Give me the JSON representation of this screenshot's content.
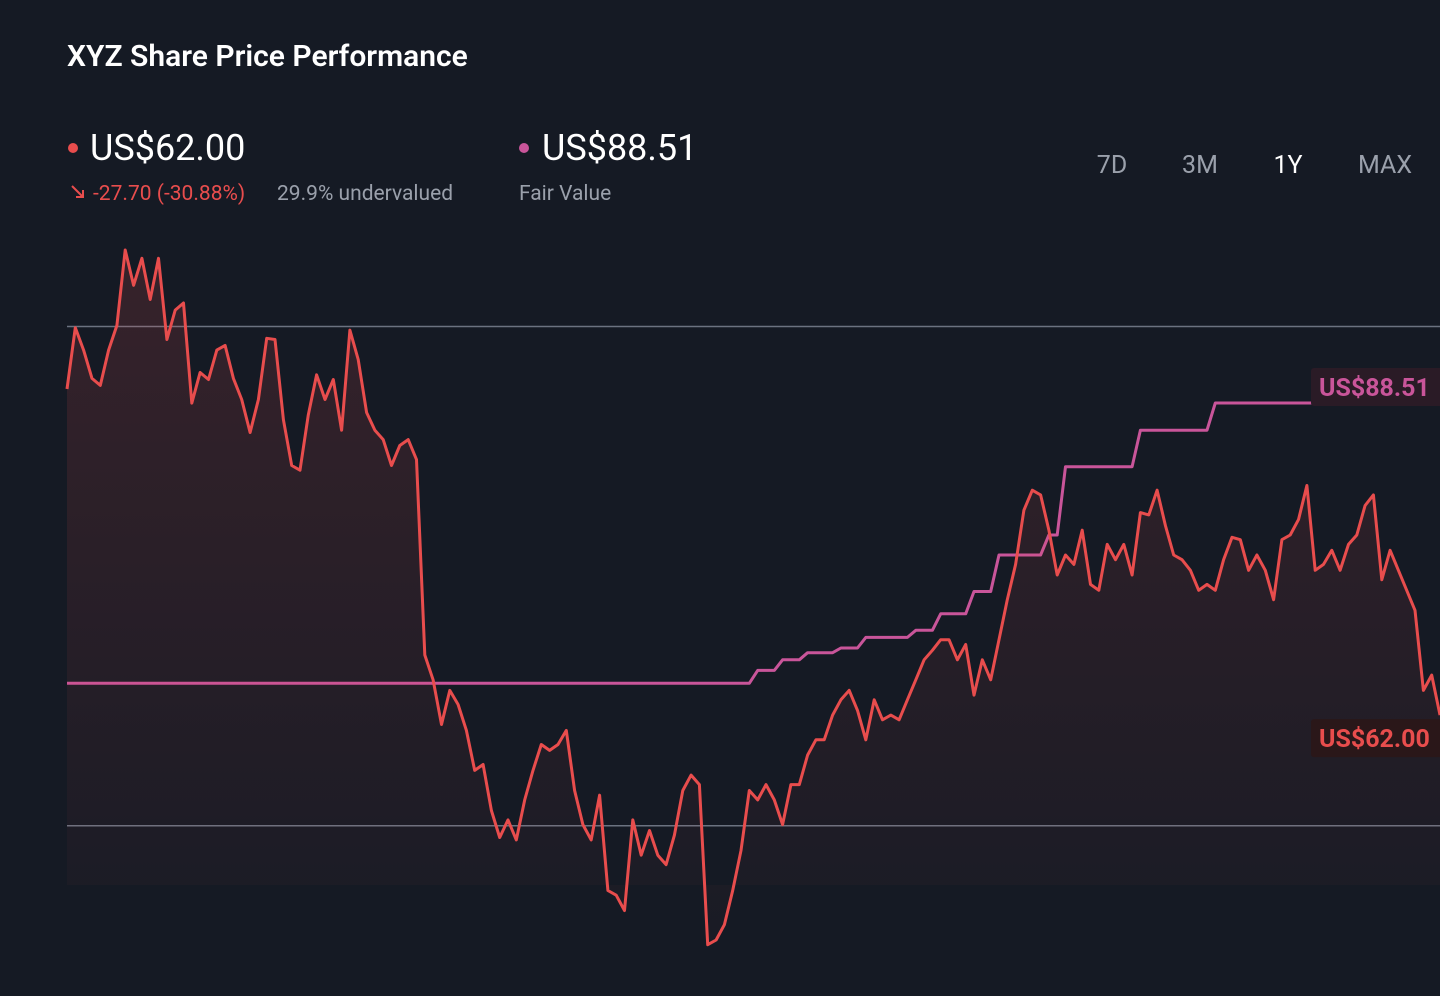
{
  "header": {
    "price": "US$62.00",
    "change": "-27.70 (-30.88%)",
    "valuation": "29.9% undervalued",
    "fair_value": "US$88.51",
    "fair_value_caption": "Fair Value",
    "ranges": [
      "7D",
      "3M",
      "1Y",
      "MAX"
    ],
    "active_range_index": 2
  },
  "chart_data": {
    "type": "line",
    "title": "XYZ Share Price Performance",
    "ylim": [
      41.2,
      103.2
    ],
    "yticks": [
      52.6,
      95
    ],
    "grid": true,
    "series": [
      {
        "name": "Share Price",
        "color": "#e84d4d",
        "last_label": "US$62.00",
        "values": [
          89.7,
          94.9,
          93.0,
          90.6,
          90.0,
          93.0,
          95.1,
          101.5,
          98.5,
          100.8,
          97.3,
          100.8,
          93.9,
          96.4,
          97.0,
          88.5,
          91.1,
          90.5,
          93.0,
          93.4,
          90.6,
          88.8,
          86.0,
          88.8,
          94.0,
          93.9,
          87.1,
          83.2,
          82.8,
          87.5,
          90.9,
          88.8,
          90.5,
          86.2,
          94.7,
          92.2,
          87.7,
          86.2,
          85.4,
          83.2,
          84.9,
          85.4,
          83.7,
          67.1,
          65.0,
          61.2,
          64.1,
          62.9,
          60.7,
          57.3,
          57.8,
          53.9,
          51.6,
          53.1,
          51.4,
          54.8,
          57.3,
          59.5,
          59.0,
          59.5,
          60.7,
          55.6,
          52.7,
          51.4,
          55.2,
          47.1,
          46.7,
          45.4,
          53.1,
          50.1,
          52.2,
          50.1,
          49.3,
          51.8,
          55.6,
          56.9,
          56.1,
          42.5,
          42.9,
          44.2,
          47.1,
          50.5,
          55.6,
          54.8,
          56.1,
          54.8,
          52.7,
          56.1,
          56.1,
          58.6,
          59.9,
          59.9,
          62.0,
          63.3,
          64.1,
          62.4,
          59.9,
          63.3,
          61.6,
          62.0,
          61.6,
          63.3,
          65.0,
          66.7,
          67.5,
          68.4,
          68.4,
          66.7,
          68.0,
          63.7,
          66.7,
          65.0,
          68.4,
          71.8,
          74.8,
          79.4,
          81.1,
          80.7,
          77.7,
          73.9,
          75.6,
          74.8,
          77.7,
          73.1,
          72.6,
          76.5,
          75.2,
          76.5,
          73.9,
          79.2,
          79.0,
          81.1,
          78.1,
          75.6,
          75.2,
          74.3,
          72.6,
          73.1,
          72.6,
          75.2,
          77.1,
          76.9,
          74.3,
          75.6,
          74.3,
          71.8,
          76.9,
          77.3,
          78.6,
          81.5,
          74.3,
          74.8,
          76.0,
          74.3,
          76.5,
          77.3,
          79.8,
          80.7,
          73.5,
          76.0,
          74.3,
          72.6,
          70.9,
          64.1,
          65.4,
          62.0
        ]
      },
      {
        "name": "Fair Value",
        "color": "#c9559a",
        "last_label": "US$88.51",
        "values": [
          64.7,
          64.7,
          64.7,
          64.7,
          64.7,
          64.7,
          64.7,
          64.7,
          64.7,
          64.7,
          64.7,
          64.7,
          64.7,
          64.7,
          64.7,
          64.7,
          64.7,
          64.7,
          64.7,
          64.7,
          64.7,
          64.7,
          64.7,
          64.7,
          64.7,
          64.7,
          64.7,
          64.7,
          64.7,
          64.7,
          64.7,
          64.7,
          64.7,
          64.7,
          64.7,
          64.7,
          64.7,
          64.7,
          64.7,
          64.7,
          64.7,
          64.7,
          64.7,
          64.7,
          64.7,
          64.7,
          64.7,
          64.7,
          64.7,
          64.7,
          64.7,
          64.7,
          64.7,
          64.7,
          64.7,
          64.7,
          64.7,
          64.7,
          64.7,
          64.7,
          64.7,
          64.7,
          64.7,
          64.7,
          64.7,
          64.7,
          64.7,
          64.7,
          64.7,
          64.7,
          64.7,
          64.7,
          64.7,
          64.7,
          64.7,
          64.7,
          64.7,
          64.7,
          64.7,
          64.7,
          64.7,
          64.7,
          64.7,
          65.8,
          65.8,
          65.8,
          66.7,
          66.7,
          66.7,
          67.3,
          67.3,
          67.3,
          67.3,
          67.7,
          67.7,
          67.7,
          68.6,
          68.6,
          68.6,
          68.6,
          68.6,
          68.6,
          69.2,
          69.2,
          69.2,
          70.6,
          70.6,
          70.6,
          70.6,
          72.5,
          72.5,
          72.5,
          75.6,
          75.6,
          75.6,
          75.6,
          75.6,
          75.6,
          77.3,
          77.3,
          83.1,
          83.1,
          83.1,
          83.1,
          83.1,
          83.1,
          83.1,
          83.1,
          83.1,
          86.2,
          86.2,
          86.2,
          86.2,
          86.2,
          86.2,
          86.2,
          86.2,
          86.2,
          88.51,
          88.51,
          88.51,
          88.51,
          88.51,
          88.51,
          88.51,
          88.51,
          88.51,
          88.51,
          88.51,
          88.51,
          88.51,
          88.51,
          88.51,
          88.51,
          88.51,
          88.51,
          88.51,
          88.51,
          88.51,
          88.51,
          88.51,
          88.51,
          88.51,
          88.51,
          88.51,
          88.51
        ]
      }
    ]
  }
}
